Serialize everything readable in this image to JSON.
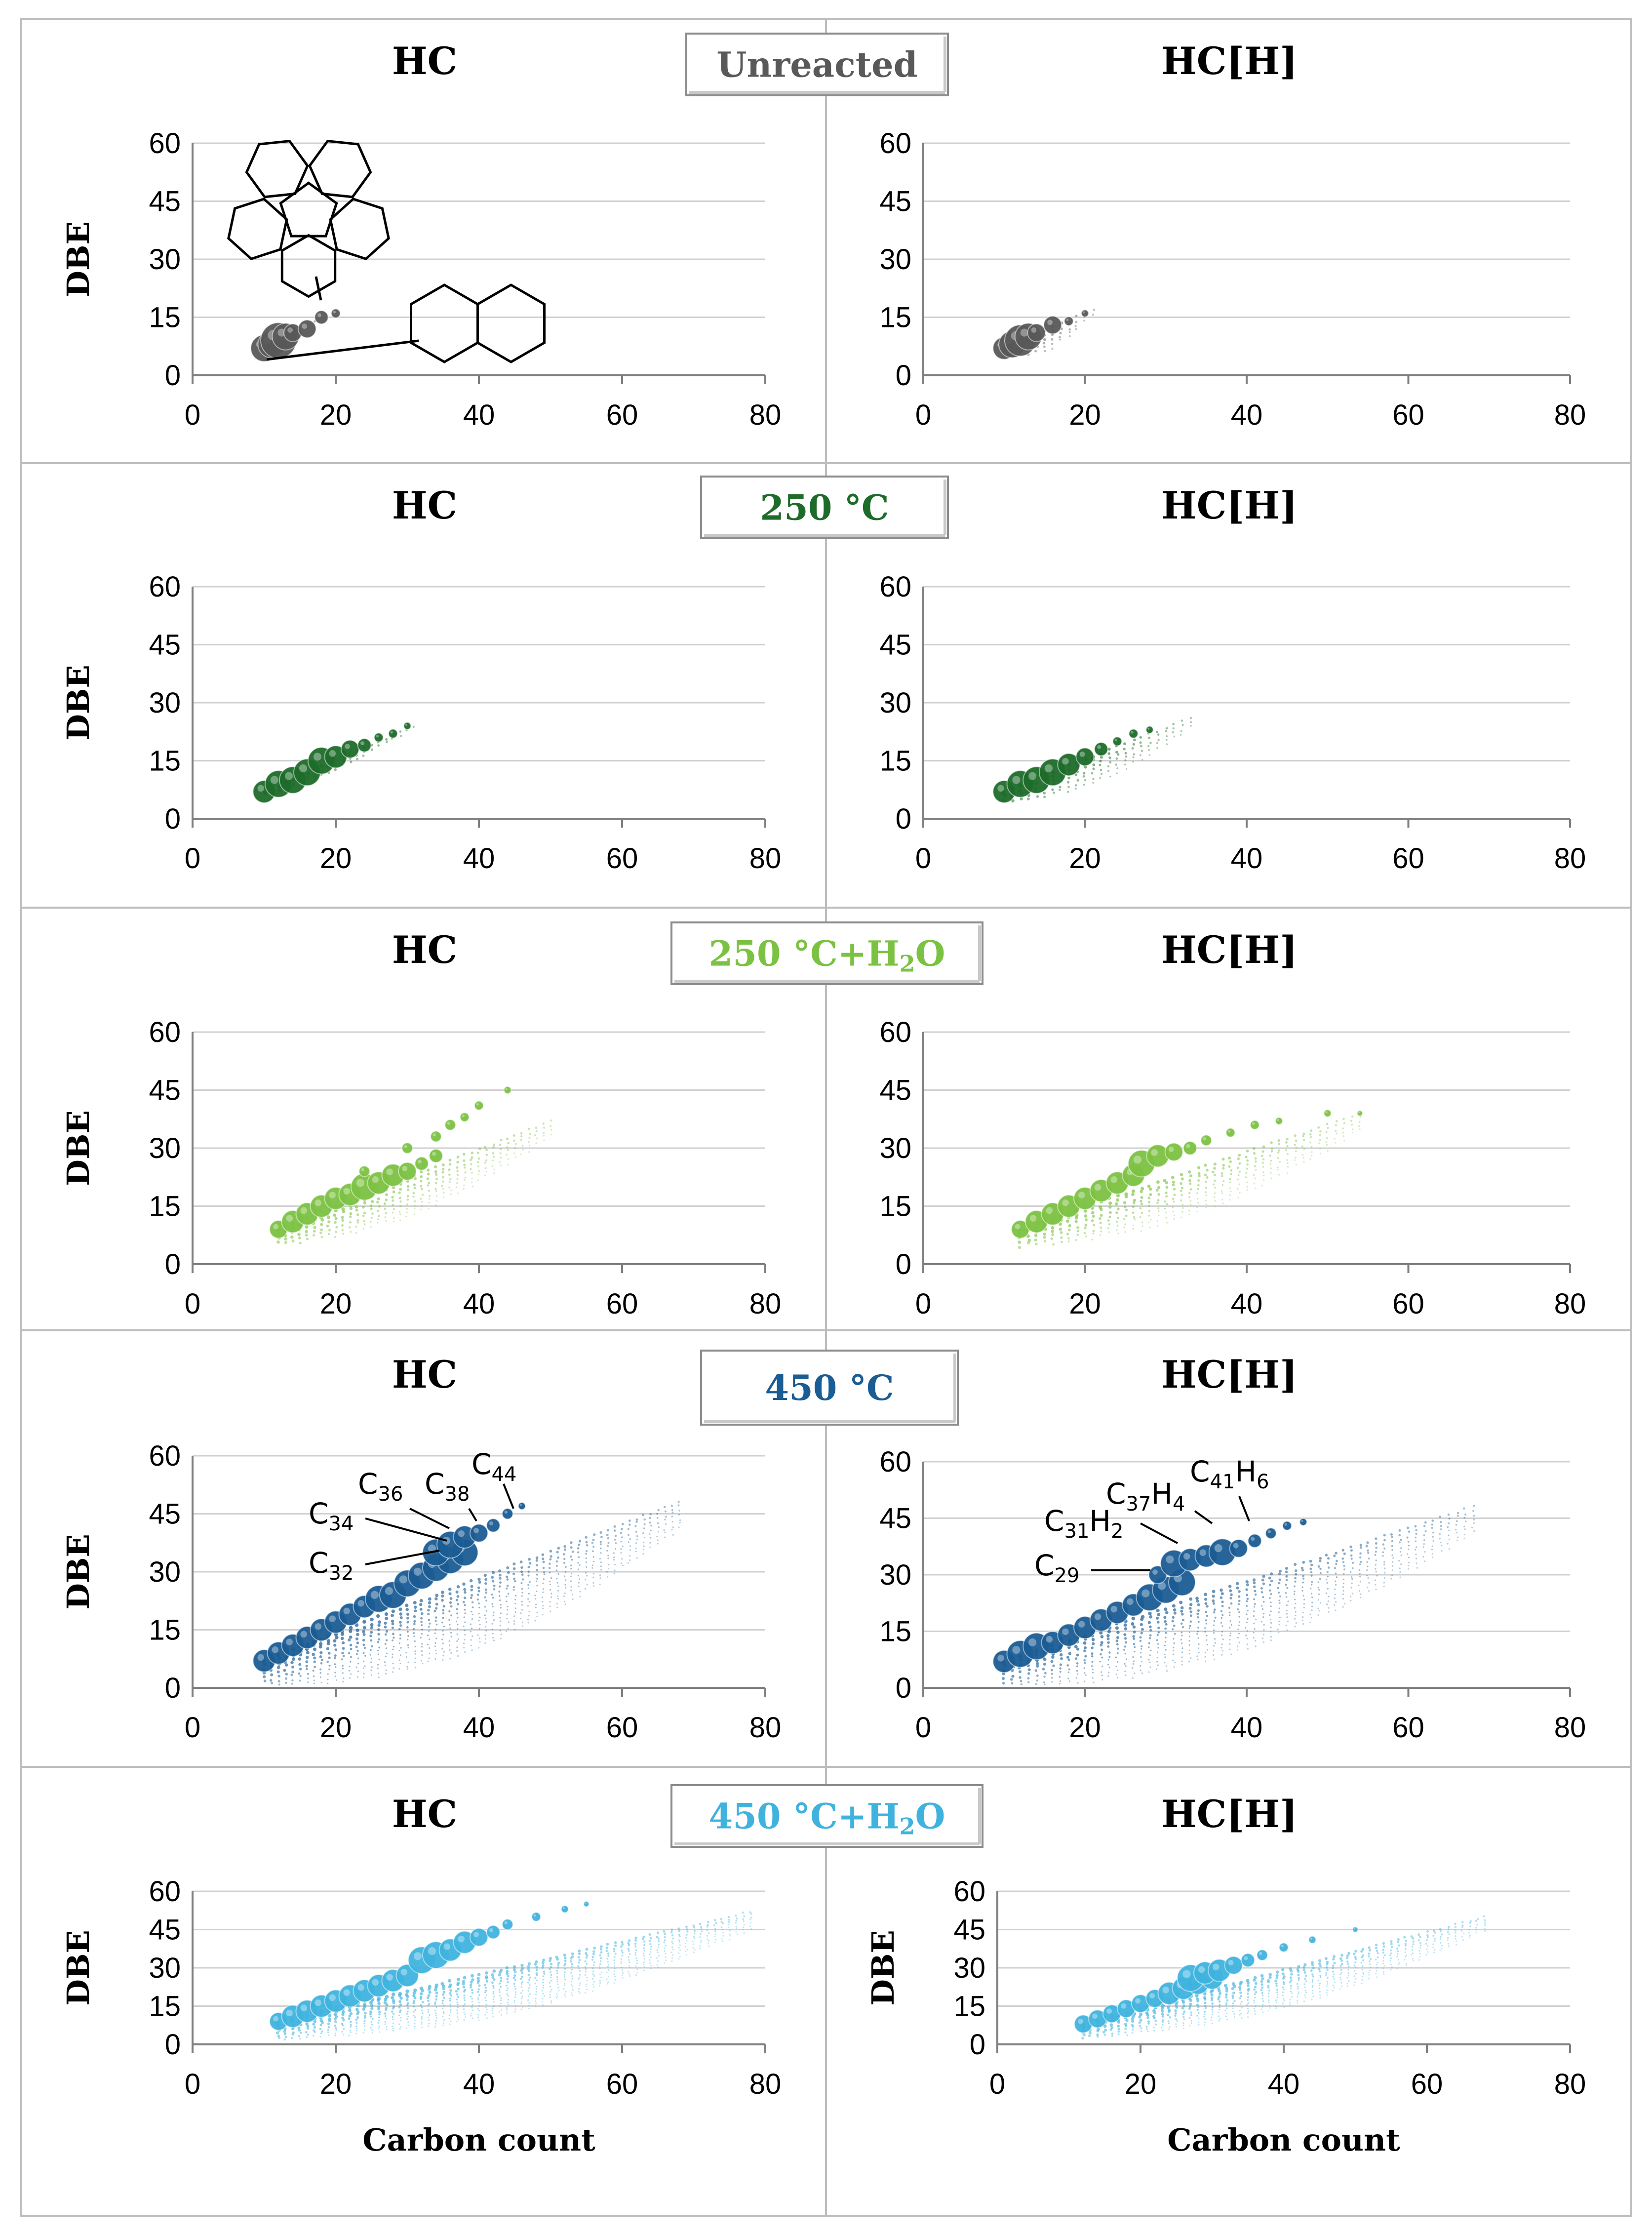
{
  "panel_titles": {
    "hc": "HC",
    "hch": "HC[H]"
  },
  "ylabel": "DBE",
  "xlabel": "Carbon count",
  "colors": {
    "unreacted": "#595959",
    "c250": "#1e6b2a",
    "c250w": "#7cc242",
    "c450": "#1a5c94",
    "c450w": "#3fb3de"
  },
  "conditions": [
    {
      "key": "unreacted",
      "label": "Unreacted",
      "sub": ""
    },
    {
      "key": "c250",
      "label": "250 °C",
      "sub": ""
    },
    {
      "key": "c250w",
      "label": "250 °C+H",
      "sub": "2",
      "tail": "O"
    },
    {
      "key": "c450",
      "label": "450 °C",
      "sub": ""
    },
    {
      "key": "c450w",
      "label": "450 °C+H",
      "sub": "2",
      "tail": "O"
    }
  ],
  "annotations_hc_450": [
    {
      "t": "C",
      "s": "32"
    },
    {
      "t": "C",
      "s": "34"
    },
    {
      "t": "C",
      "s": "36"
    },
    {
      "t": "C",
      "s": "38"
    },
    {
      "t": "C",
      "s": "44"
    }
  ],
  "annotations_hch_450": [
    {
      "t": "C",
      "s": "29",
      "t2": "",
      "s2": ""
    },
    {
      "t": "C",
      "s": "31",
      "t2": "H",
      "s2": "2"
    },
    {
      "t": "C",
      "s": "37",
      "t2": "H",
      "s2": "4"
    },
    {
      "t": "C",
      "s": "41",
      "t2": "H",
      "s2": "6"
    }
  ],
  "chart_data": [
    {
      "type": "scatter",
      "condition": "Unreacted",
      "panel": "HC",
      "xlabel": "",
      "ylabel": "DBE",
      "xlim": [
        0,
        80
      ],
      "ylim": [
        0,
        60
      ],
      "xticks": [
        0,
        20,
        40,
        60,
        80
      ],
      "yticks": [
        0,
        15,
        30,
        45,
        60
      ],
      "trend": {
        "x": [
          10,
          18
        ],
        "y": [
          7,
          15
        ]
      },
      "spread": 1,
      "bubbles": [
        [
          10,
          7,
          3
        ],
        [
          11,
          8,
          3
        ],
        [
          12,
          9,
          4
        ],
        [
          13,
          10,
          3
        ],
        [
          14,
          11,
          2
        ],
        [
          16,
          12,
          2
        ],
        [
          18,
          15,
          1.5
        ],
        [
          20,
          16,
          1
        ]
      ]
    },
    {
      "type": "scatter",
      "condition": "Unreacted",
      "panel": "HC[H]",
      "xlabel": "",
      "ylabel": "",
      "xlim": [
        0,
        80
      ],
      "ylim": [
        0,
        60
      ],
      "xticks": [
        0,
        20,
        40,
        60,
        80
      ],
      "yticks": [
        0,
        15,
        30,
        45,
        60
      ],
      "trend": {
        "x": [
          10,
          21
        ],
        "y": [
          7,
          17
        ]
      },
      "spread": 4,
      "bubbles": [
        [
          10,
          7,
          2.5
        ],
        [
          11,
          8,
          3
        ],
        [
          12,
          9,
          3.5
        ],
        [
          13,
          10,
          3
        ],
        [
          14,
          11,
          2
        ],
        [
          16,
          13,
          2
        ],
        [
          18,
          14,
          1
        ],
        [
          20,
          16,
          0.8
        ]
      ]
    },
    {
      "type": "scatter",
      "condition": "250 °C",
      "panel": "HC",
      "xlabel": "",
      "ylabel": "DBE",
      "xlim": [
        0,
        80
      ],
      "ylim": [
        0,
        60
      ],
      "xticks": [
        0,
        20,
        40,
        60,
        80
      ],
      "yticks": [
        0,
        15,
        30,
        45,
        60
      ],
      "trend": {
        "x": [
          10,
          31
        ],
        "y": [
          7,
          24
        ]
      },
      "spread": 2,
      "bubbles": [
        [
          10,
          7,
          2.5
        ],
        [
          12,
          9,
          3
        ],
        [
          14,
          10,
          3
        ],
        [
          16,
          12,
          3
        ],
        [
          18,
          15,
          3
        ],
        [
          20,
          16,
          2.5
        ],
        [
          22,
          18,
          2
        ],
        [
          24,
          19,
          1.5
        ],
        [
          26,
          21,
          1
        ],
        [
          28,
          22,
          1
        ],
        [
          30,
          24,
          0.8
        ]
      ]
    },
    {
      "type": "scatter",
      "condition": "250 °C",
      "panel": "HC[H]",
      "xlabel": "",
      "ylabel": "",
      "xlim": [
        0,
        80
      ],
      "ylim": [
        0,
        60
      ],
      "xticks": [
        0,
        20,
        40,
        60,
        80
      ],
      "yticks": [
        0,
        15,
        30,
        45,
        60
      ],
      "trend": {
        "x": [
          10,
          33
        ],
        "y": [
          7,
          26
        ]
      },
      "spread": 5,
      "bubbles": [
        [
          10,
          7,
          2.5
        ],
        [
          12,
          9,
          3
        ],
        [
          14,
          10,
          3
        ],
        [
          16,
          12,
          3
        ],
        [
          18,
          14,
          2.5
        ],
        [
          20,
          16,
          2
        ],
        [
          22,
          18,
          1.5
        ],
        [
          24,
          20,
          1
        ],
        [
          26,
          22,
          1
        ],
        [
          28,
          23,
          0.8
        ]
      ]
    },
    {
      "type": "scatter",
      "condition": "250 °C+H2O",
      "panel": "HC",
      "xlabel": "",
      "ylabel": "DBE",
      "xlim": [
        0,
        80
      ],
      "ylim": [
        0,
        60
      ],
      "xticks": [
        0,
        20,
        40,
        60,
        80
      ],
      "yticks": [
        0,
        15,
        30,
        45,
        60
      ],
      "trend": {
        "x": [
          12,
          50
        ],
        "y": [
          9,
          37
        ]
      },
      "spread": 7,
      "bubbles": [
        [
          12,
          9,
          2
        ],
        [
          14,
          11,
          2.5
        ],
        [
          16,
          13,
          2.5
        ],
        [
          18,
          15,
          2.5
        ],
        [
          20,
          17,
          2.5
        ],
        [
          22,
          18,
          2.5
        ],
        [
          24,
          20,
          3
        ],
        [
          26,
          21,
          2.5
        ],
        [
          28,
          23,
          2.5
        ],
        [
          30,
          24,
          2
        ],
        [
          32,
          26,
          1.5
        ],
        [
          34,
          28,
          1.5
        ],
        [
          30,
          30,
          1.2
        ],
        [
          34,
          33,
          1.2
        ],
        [
          36,
          36,
          1.2
        ],
        [
          38,
          38,
          1
        ],
        [
          40,
          41,
          1
        ],
        [
          44,
          45,
          0.8
        ],
        [
          24,
          24,
          1.2
        ]
      ]
    },
    {
      "type": "scatter",
      "condition": "250 °C+H2O",
      "panel": "HC[H]",
      "xlabel": "",
      "ylabel": "",
      "xlim": [
        0,
        80
      ],
      "ylim": [
        0,
        60
      ],
      "xticks": [
        0,
        20,
        40,
        60,
        80
      ],
      "yticks": [
        0,
        15,
        30,
        45,
        60
      ],
      "trend": {
        "x": [
          12,
          54
        ],
        "y": [
          9,
          39
        ]
      },
      "spread": 8,
      "bubbles": [
        [
          12,
          9,
          2
        ],
        [
          14,
          11,
          2.5
        ],
        [
          16,
          13,
          2.5
        ],
        [
          18,
          15,
          2.5
        ],
        [
          20,
          17,
          2.5
        ],
        [
          22,
          19,
          2.5
        ],
        [
          24,
          21,
          2.5
        ],
        [
          26,
          23,
          2.5
        ],
        [
          27,
          26,
          3
        ],
        [
          29,
          28,
          2.5
        ],
        [
          31,
          29,
          2
        ],
        [
          33,
          30,
          1.5
        ],
        [
          35,
          32,
          1.2
        ],
        [
          38,
          34,
          1
        ],
        [
          41,
          36,
          1
        ],
        [
          44,
          37,
          0.8
        ],
        [
          50,
          39,
          0.8
        ],
        [
          54,
          39,
          0.6
        ]
      ]
    },
    {
      "type": "scatter",
      "condition": "450 °C",
      "panel": "HC",
      "xlabel": "",
      "ylabel": "DBE",
      "xlim": [
        0,
        80
      ],
      "ylim": [
        0,
        60
      ],
      "xticks": [
        0,
        20,
        40,
        60,
        80
      ],
      "yticks": [
        0,
        15,
        30,
        45,
        60
      ],
      "trend": {
        "x": [
          10,
          68
        ],
        "y": [
          7,
          48
        ]
      },
      "spread": 12,
      "bubbles": [
        [
          10,
          7,
          2.5
        ],
        [
          12,
          9,
          2.5
        ],
        [
          14,
          11,
          2.5
        ],
        [
          16,
          13,
          2.5
        ],
        [
          18,
          15,
          2.5
        ],
        [
          20,
          17,
          2.5
        ],
        [
          22,
          19,
          2.5
        ],
        [
          24,
          21,
          2.5
        ],
        [
          26,
          23,
          3
        ],
        [
          28,
          24,
          3
        ],
        [
          30,
          27,
          3
        ],
        [
          32,
          29,
          3
        ],
        [
          34,
          31,
          3
        ],
        [
          36,
          33,
          3
        ],
        [
          38,
          35,
          3
        ],
        [
          34,
          35,
          3
        ],
        [
          36,
          37,
          3
        ],
        [
          38,
          39,
          2.5
        ],
        [
          40,
          40,
          2
        ],
        [
          42,
          42,
          1.5
        ],
        [
          44,
          45,
          1.2
        ],
        [
          46,
          47,
          0.8
        ]
      ]
    },
    {
      "type": "scatter",
      "condition": "450 °C",
      "panel": "HC[H]",
      "xlabel": "",
      "ylabel": "",
      "xlim": [
        0,
        80
      ],
      "ylim": [
        0,
        60
      ],
      "xticks": [
        0,
        20,
        40,
        60,
        80
      ],
      "yticks": [
        0,
        15,
        30,
        45,
        60
      ],
      "trend": {
        "x": [
          10,
          68
        ],
        "y": [
          7,
          48
        ]
      },
      "spread": 12,
      "bubbles": [
        [
          10,
          7,
          2.5
        ],
        [
          12,
          9,
          3
        ],
        [
          14,
          11,
          3
        ],
        [
          16,
          12,
          2.5
        ],
        [
          18,
          14,
          2.5
        ],
        [
          20,
          16,
          2.5
        ],
        [
          22,
          18,
          2.5
        ],
        [
          24,
          20,
          2.5
        ],
        [
          26,
          22,
          2.5
        ],
        [
          28,
          24,
          3
        ],
        [
          30,
          26,
          3
        ],
        [
          32,
          28,
          3
        ],
        [
          29,
          30,
          2
        ],
        [
          31,
          33,
          3
        ],
        [
          33,
          34,
          2.5
        ],
        [
          35,
          35,
          2.5
        ],
        [
          37,
          36,
          3
        ],
        [
          39,
          37,
          2
        ],
        [
          41,
          39,
          1.5
        ],
        [
          43,
          41,
          1.2
        ],
        [
          45,
          43,
          1
        ],
        [
          47,
          44,
          0.8
        ]
      ]
    },
    {
      "type": "scatter",
      "condition": "450 °C+H2O",
      "panel": "HC",
      "xlabel": "Carbon count",
      "ylabel": "DBE",
      "xlim": [
        0,
        80
      ],
      "ylim": [
        0,
        60
      ],
      "xticks": [
        0,
        20,
        40,
        60,
        80
      ],
      "yticks": [
        0,
        15,
        30,
        45,
        60
      ],
      "trend": {
        "x": [
          12,
          78
        ],
        "y": [
          9,
          52
        ]
      },
      "spread": 12,
      "bubbles": [
        [
          12,
          9,
          2
        ],
        [
          14,
          11,
          2.5
        ],
        [
          16,
          13,
          2.5
        ],
        [
          18,
          15,
          2.5
        ],
        [
          20,
          17,
          2.5
        ],
        [
          22,
          19,
          2.5
        ],
        [
          24,
          21,
          2.5
        ],
        [
          26,
          23,
          2.5
        ],
        [
          28,
          25,
          2.5
        ],
        [
          30,
          27,
          2.5
        ],
        [
          32,
          33,
          3
        ],
        [
          34,
          35,
          3
        ],
        [
          36,
          37,
          2.5
        ],
        [
          38,
          40,
          2.5
        ],
        [
          40,
          42,
          2
        ],
        [
          42,
          44,
          1.5
        ],
        [
          44,
          47,
          1.2
        ],
        [
          48,
          50,
          1
        ],
        [
          52,
          53,
          0.8
        ],
        [
          55,
          55,
          0.6
        ]
      ]
    },
    {
      "type": "scatter",
      "condition": "450 °C+H2O",
      "panel": "HC[H]",
      "xlabel": "Carbon count",
      "ylabel": "DBE",
      "xlim": [
        0,
        80
      ],
      "ylim": [
        0,
        60
      ],
      "xticks": [
        0,
        20,
        40,
        60,
        80
      ],
      "yticks": [
        0,
        15,
        30,
        45,
        60
      ],
      "trend": {
        "x": [
          12,
          68
        ],
        "y": [
          8,
          50
        ]
      },
      "spread": 10,
      "bubbles": [
        [
          12,
          8,
          2
        ],
        [
          14,
          10,
          2
        ],
        [
          16,
          12,
          2
        ],
        [
          18,
          14,
          2
        ],
        [
          20,
          16,
          2
        ],
        [
          22,
          18,
          2
        ],
        [
          24,
          20,
          2.5
        ],
        [
          26,
          22,
          2.5
        ],
        [
          28,
          24,
          2.5
        ],
        [
          30,
          26,
          2.5
        ],
        [
          27,
          26,
          3
        ],
        [
          29,
          28,
          2.5
        ],
        [
          31,
          29,
          2.5
        ],
        [
          33,
          31,
          2
        ],
        [
          35,
          33,
          1.5
        ],
        [
          37,
          35,
          1.2
        ],
        [
          40,
          38,
          1
        ],
        [
          44,
          41,
          0.8
        ],
        [
          50,
          45,
          0.6
        ]
      ]
    }
  ]
}
